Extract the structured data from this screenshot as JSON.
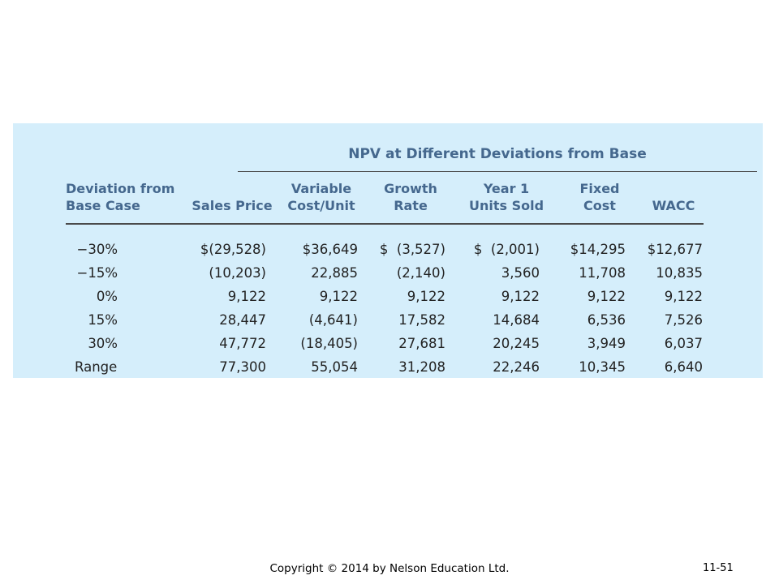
{
  "table": {
    "group_title": "NPV at Different Deviations from Base",
    "headers": [
      {
        "lines": [
          "Deviation from",
          "Base Case"
        ]
      },
      {
        "lines": [
          "",
          "Sales Price"
        ]
      },
      {
        "lines": [
          "Variable",
          "Cost/Unit"
        ]
      },
      {
        "lines": [
          "Growth",
          "Rate"
        ]
      },
      {
        "lines": [
          "Year 1",
          "Units Sold"
        ]
      },
      {
        "lines": [
          "Fixed",
          "Cost"
        ]
      },
      {
        "lines": [
          "",
          "WACC"
        ]
      }
    ],
    "rows": [
      {
        "label": "−30%",
        "values": [
          "$(29,528)",
          "$36,649",
          "$  (3,527)",
          "$  (2,001)",
          "$14,295",
          "$12,677"
        ]
      },
      {
        "label": "−15%",
        "values": [
          "(10,203)",
          "22,885",
          "(2,140)",
          "3,560",
          "11,708",
          "10,835"
        ]
      },
      {
        "label": "0%",
        "values": [
          "9,122",
          "9,122",
          "9,122",
          "9,122",
          "9,122",
          "9,122"
        ]
      },
      {
        "label": "15%",
        "values": [
          "28,447",
          "(4,641)",
          "17,582",
          "14,684",
          "6,536",
          "7,526"
        ]
      },
      {
        "label": "30%",
        "values": [
          "47,772",
          "(18,405)",
          "27,681",
          "20,245",
          "3,949",
          "6,037"
        ]
      },
      {
        "label": "Range",
        "values": [
          "77,300",
          "55,054",
          "31,208",
          "22,246",
          "10,345",
          "6,640"
        ]
      }
    ]
  },
  "footer": {
    "copyright": "Copyright © 2014 by Nelson Education Ltd.",
    "page_number": "11-51"
  }
}
